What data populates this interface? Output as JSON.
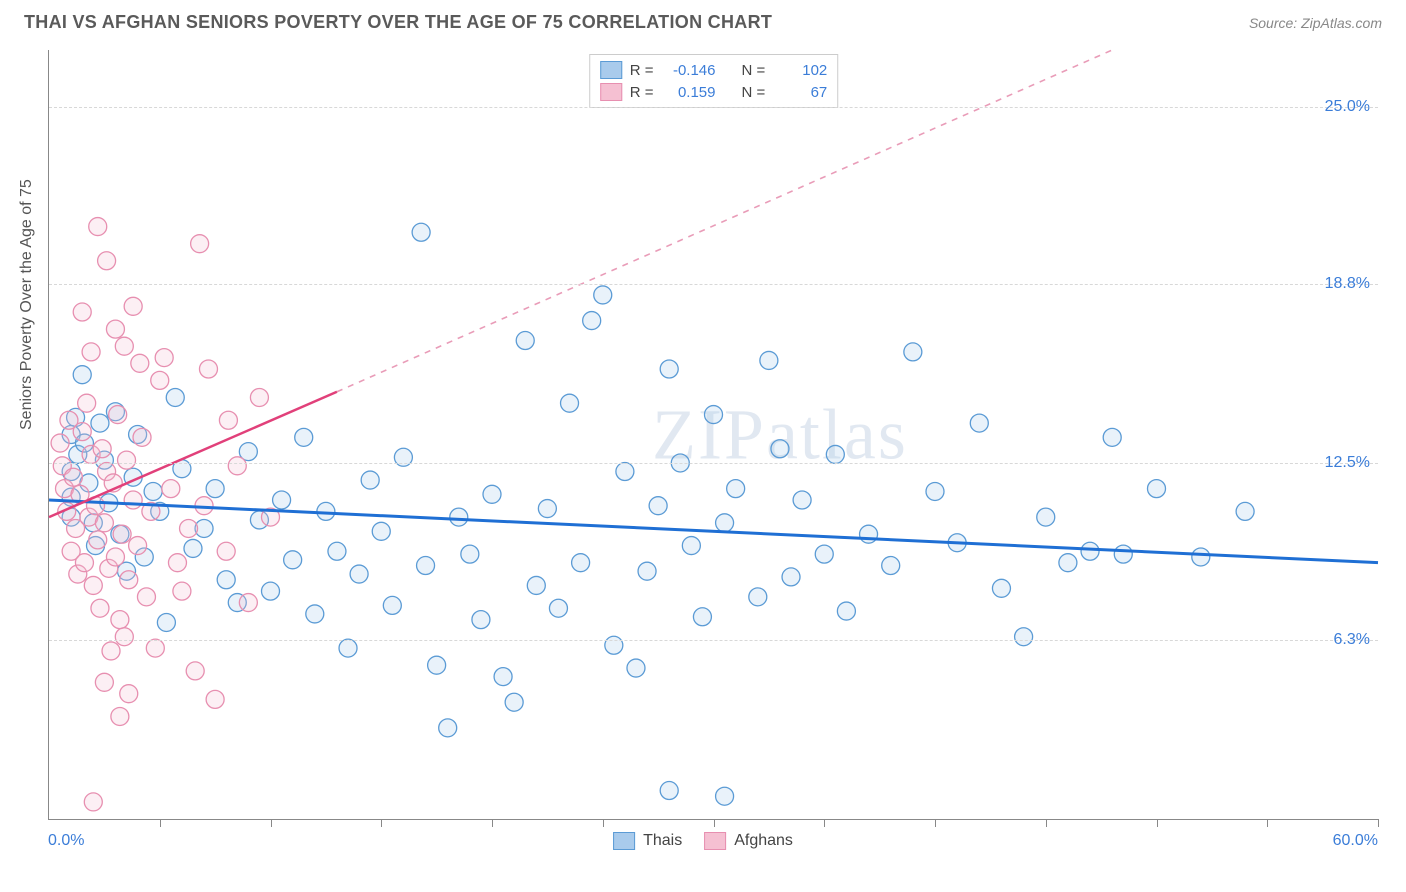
{
  "title": "THAI VS AFGHAN SENIORS POVERTY OVER THE AGE OF 75 CORRELATION CHART",
  "source": "Source: ZipAtlas.com",
  "ylabel": "Seniors Poverty Over the Age of 75",
  "watermark_bold": "ZIP",
  "watermark_thin": "atlas",
  "chart": {
    "type": "scatter",
    "xlim": [
      0,
      60
    ],
    "ylim": [
      0,
      27
    ],
    "x_min_label": "0.0%",
    "x_max_label": "60.0%",
    "ytick_labels": [
      "6.3%",
      "12.5%",
      "18.8%",
      "25.0%"
    ],
    "ytick_values": [
      6.3,
      12.5,
      18.8,
      25.0
    ],
    "xtick_count": 12,
    "background_color": "#ffffff",
    "grid_color": "#d8d8d8",
    "axis_color": "#888888",
    "marker_radius": 9,
    "marker_stroke_width": 1.3,
    "marker_fill_opacity": 0.25,
    "series": [
      {
        "name": "Thais",
        "color_stroke": "#5b9bd5",
        "color_fill": "#a9cbec",
        "r_label": "R =",
        "r_value": "-0.146",
        "n_label": "N =",
        "n_value": "102",
        "trend": {
          "x1": 0,
          "y1": 11.2,
          "x2": 60,
          "y2": 9.0,
          "stroke": "#1f6fd4",
          "width": 3,
          "dash": ""
        },
        "points": [
          [
            1,
            13.5
          ],
          [
            1,
            12.2
          ],
          [
            1,
            11.3
          ],
          [
            1,
            10.6
          ],
          [
            1.2,
            14.1
          ],
          [
            1.3,
            12.8
          ],
          [
            1.5,
            15.6
          ],
          [
            1.6,
            13.2
          ],
          [
            1.8,
            11.8
          ],
          [
            2,
            10.4
          ],
          [
            2.1,
            9.6
          ],
          [
            2.3,
            13.9
          ],
          [
            2.5,
            12.6
          ],
          [
            2.7,
            11.1
          ],
          [
            3,
            14.3
          ],
          [
            3.2,
            10.0
          ],
          [
            3.5,
            8.7
          ],
          [
            3.8,
            12.0
          ],
          [
            4,
            13.5
          ],
          [
            4.3,
            9.2
          ],
          [
            4.7,
            11.5
          ],
          [
            5,
            10.8
          ],
          [
            5.3,
            6.9
          ],
          [
            5.7,
            14.8
          ],
          [
            6,
            12.3
          ],
          [
            6.5,
            9.5
          ],
          [
            7,
            10.2
          ],
          [
            7.5,
            11.6
          ],
          [
            8,
            8.4
          ],
          [
            8.5,
            7.6
          ],
          [
            9,
            12.9
          ],
          [
            9.5,
            10.5
          ],
          [
            10,
            8.0
          ],
          [
            10.5,
            11.2
          ],
          [
            11,
            9.1
          ],
          [
            11.5,
            13.4
          ],
          [
            12,
            7.2
          ],
          [
            12.5,
            10.8
          ],
          [
            13,
            9.4
          ],
          [
            13.5,
            6.0
          ],
          [
            14,
            8.6
          ],
          [
            14.5,
            11.9
          ],
          [
            15,
            10.1
          ],
          [
            15.5,
            7.5
          ],
          [
            16,
            12.7
          ],
          [
            16.8,
            20.6
          ],
          [
            17,
            8.9
          ],
          [
            17.5,
            5.4
          ],
          [
            18,
            3.2
          ],
          [
            18.5,
            10.6
          ],
          [
            19,
            9.3
          ],
          [
            19.5,
            7.0
          ],
          [
            20,
            11.4
          ],
          [
            20.5,
            5.0
          ],
          [
            21,
            4.1
          ],
          [
            21.5,
            16.8
          ],
          [
            22,
            8.2
          ],
          [
            22.5,
            10.9
          ],
          [
            23,
            7.4
          ],
          [
            23.5,
            14.6
          ],
          [
            24,
            9.0
          ],
          [
            24.5,
            17.5
          ],
          [
            25,
            18.4
          ],
          [
            25.5,
            6.1
          ],
          [
            26,
            12.2
          ],
          [
            26.5,
            5.3
          ],
          [
            27,
            8.7
          ],
          [
            27.5,
            11.0
          ],
          [
            28,
            15.8
          ],
          [
            28.5,
            12.5
          ],
          [
            29,
            9.6
          ],
          [
            29.5,
            7.1
          ],
          [
            30,
            14.2
          ],
          [
            30.5,
            10.4
          ],
          [
            31,
            11.6
          ],
          [
            32,
            7.8
          ],
          [
            32.5,
            16.1
          ],
          [
            33,
            13.0
          ],
          [
            33.5,
            8.5
          ],
          [
            34,
            11.2
          ],
          [
            35,
            9.3
          ],
          [
            35.5,
            12.8
          ],
          [
            36,
            7.3
          ],
          [
            37,
            10.0
          ],
          [
            38,
            8.9
          ],
          [
            39,
            16.4
          ],
          [
            40,
            11.5
          ],
          [
            41,
            9.7
          ],
          [
            42,
            13.9
          ],
          [
            43,
            8.1
          ],
          [
            44,
            6.4
          ],
          [
            45,
            10.6
          ],
          [
            46,
            9.0
          ],
          [
            47,
            9.4
          ],
          [
            48,
            13.4
          ],
          [
            48.5,
            9.3
          ],
          [
            50,
            11.6
          ],
          [
            52,
            9.2
          ],
          [
            54,
            10.8
          ],
          [
            28,
            1.0
          ],
          [
            30.5,
            0.8
          ]
        ]
      },
      {
        "name": "Afghans",
        "color_stroke": "#e78fb0",
        "color_fill": "#f5c0d2",
        "r_label": "R =",
        "r_value": "0.159",
        "n_label": "N =",
        "n_value": "67",
        "trend_solid": {
          "x1": 0,
          "y1": 10.6,
          "x2": 13,
          "y2": 15.0,
          "stroke": "#e1407a",
          "width": 2.5
        },
        "trend_dash": {
          "x1": 13,
          "y1": 15.0,
          "x2": 48,
          "y2": 27.0,
          "stroke": "#e99cb8",
          "width": 1.6,
          "dash": "6,6"
        },
        "points": [
          [
            0.5,
            13.2
          ],
          [
            0.6,
            12.4
          ],
          [
            0.7,
            11.6
          ],
          [
            0.8,
            10.8
          ],
          [
            0.9,
            14.0
          ],
          [
            1.0,
            9.4
          ],
          [
            1.1,
            12.0
          ],
          [
            1.2,
            10.2
          ],
          [
            1.3,
            8.6
          ],
          [
            1.4,
            11.4
          ],
          [
            1.5,
            13.6
          ],
          [
            1.6,
            9.0
          ],
          [
            1.7,
            14.6
          ],
          [
            1.8,
            10.6
          ],
          [
            1.9,
            12.8
          ],
          [
            2.0,
            8.2
          ],
          [
            2.1,
            11.0
          ],
          [
            2.2,
            9.8
          ],
          [
            2.3,
            7.4
          ],
          [
            2.4,
            13.0
          ],
          [
            2.5,
            10.4
          ],
          [
            2.6,
            12.2
          ],
          [
            2.7,
            8.8
          ],
          [
            2.8,
            5.9
          ],
          [
            2.9,
            11.8
          ],
          [
            3.0,
            9.2
          ],
          [
            3.1,
            14.2
          ],
          [
            3.2,
            7.0
          ],
          [
            3.3,
            10.0
          ],
          [
            3.4,
            6.4
          ],
          [
            3.5,
            12.6
          ],
          [
            3.6,
            8.4
          ],
          [
            3.8,
            11.2
          ],
          [
            4.0,
            9.6
          ],
          [
            4.2,
            13.4
          ],
          [
            4.4,
            7.8
          ],
          [
            4.6,
            10.8
          ],
          [
            4.8,
            6.0
          ],
          [
            5.0,
            15.4
          ],
          [
            5.2,
            16.2
          ],
          [
            5.5,
            11.6
          ],
          [
            5.8,
            9.0
          ],
          [
            6.0,
            8.0
          ],
          [
            6.3,
            10.2
          ],
          [
            6.6,
            5.2
          ],
          [
            7.0,
            11.0
          ],
          [
            7.5,
            4.2
          ],
          [
            8.0,
            9.4
          ],
          [
            8.5,
            12.4
          ],
          [
            9.0,
            7.6
          ],
          [
            9.5,
            14.8
          ],
          [
            10.0,
            10.6
          ],
          [
            2.2,
            20.8
          ],
          [
            2.6,
            19.6
          ],
          [
            3.0,
            17.2
          ],
          [
            3.4,
            16.6
          ],
          [
            3.8,
            18.0
          ],
          [
            4.1,
            16.0
          ],
          [
            1.5,
            17.8
          ],
          [
            1.9,
            16.4
          ],
          [
            2.5,
            4.8
          ],
          [
            3.2,
            3.6
          ],
          [
            3.6,
            4.4
          ],
          [
            2.0,
            0.6
          ],
          [
            6.8,
            20.2
          ],
          [
            7.2,
            15.8
          ],
          [
            8.1,
            14.0
          ]
        ]
      }
    ]
  }
}
